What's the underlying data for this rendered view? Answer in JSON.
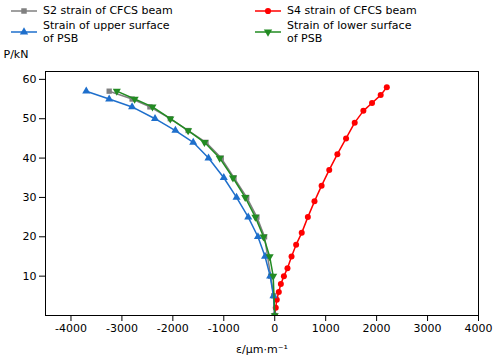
{
  "chart_data": {
    "type": "line",
    "xlabel": "ε/μm·m⁻¹",
    "ylabel": "P/kN",
    "xlim": [
      -4500,
      4000
    ],
    "ylim": [
      0,
      62
    ],
    "xticks": [
      -4000,
      -3000,
      -2000,
      -1000,
      0,
      1000,
      2000,
      3000,
      4000
    ],
    "yticks": [
      10,
      20,
      30,
      40,
      50,
      60
    ],
    "legend": "upper left",
    "series": [
      {
        "name": "S2 strain of CFCS beam",
        "color": "#808080",
        "marker": "square",
        "x": [
          -3250,
          -2800,
          -2450,
          -2050,
          -1700,
          -1350,
          -1050,
          -800,
          -550,
          -350,
          -200,
          -80,
          -20,
          0
        ],
        "values": [
          57,
          55,
          53,
          50,
          47,
          44,
          40,
          35,
          30,
          25,
          20,
          10,
          5,
          0
        ]
      },
      {
        "name": "S4 strain of CFCS beam",
        "color": "#FF0000",
        "marker": "circle",
        "x": [
          0,
          20,
          40,
          80,
          120,
          180,
          250,
          330,
          420,
          530,
          650,
          780,
          920,
          1070,
          1230,
          1400,
          1570,
          1740,
          1910,
          2080,
          2200
        ],
        "values": [
          0,
          2,
          4,
          6,
          8,
          10,
          12,
          15,
          18,
          21,
          25,
          29,
          33,
          37,
          41,
          45,
          49,
          52,
          54,
          56,
          58
        ]
      },
      {
        "name": "Strain of upper surface\nof PSB",
        "color": "#1E6FCC",
        "marker": "triangle_up",
        "x": [
          -3700,
          -3250,
          -2800,
          -2350,
          -1950,
          -1600,
          -1300,
          -1000,
          -750,
          -520,
          -330,
          -190,
          -90,
          -25,
          0
        ],
        "values": [
          57,
          55,
          53,
          50,
          47,
          44,
          40,
          35,
          30,
          25,
          20,
          15,
          10,
          5,
          0
        ]
      },
      {
        "name": "Strain of lower surface\nof PSB",
        "color": "#228B22",
        "marker": "triangle_down",
        "x": [
          -3100,
          -2750,
          -2400,
          -2050,
          -1700,
          -1380,
          -1080,
          -820,
          -580,
          -380,
          -220,
          -100,
          -30,
          0
        ],
        "values": [
          57,
          55,
          53,
          50,
          47,
          44,
          40,
          35,
          30,
          25,
          20,
          15,
          10,
          0
        ]
      }
    ]
  }
}
